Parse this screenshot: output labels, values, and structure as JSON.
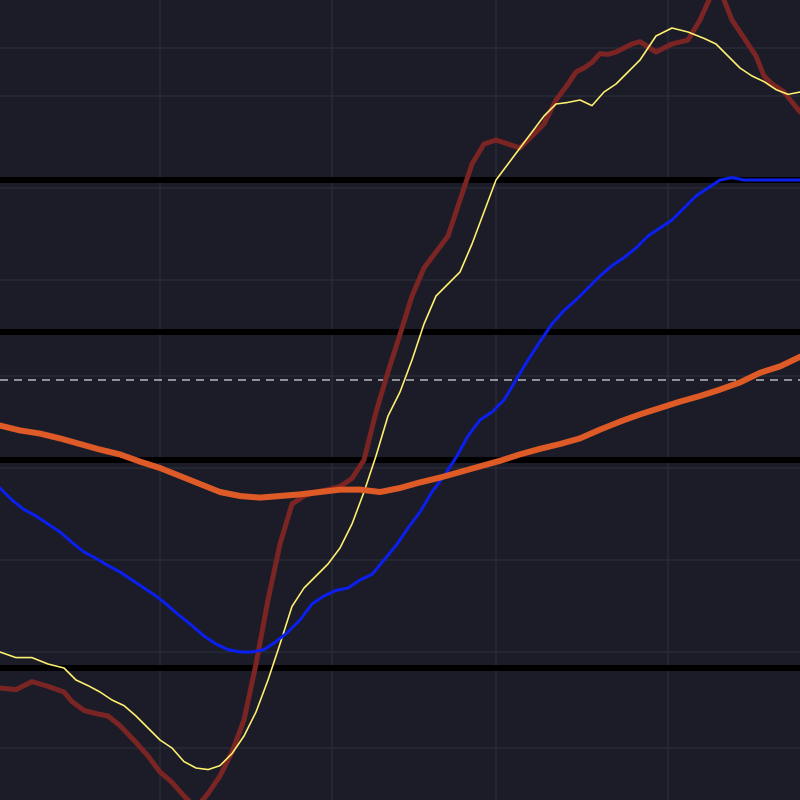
{
  "colors": {
    "background": "#1b1c27",
    "grid": "#2c2f3d",
    "hline": "#000000",
    "dashed": "#b8b8bd"
  },
  "chart_data": {
    "type": "line",
    "title": "",
    "xlabel": "",
    "ylabel": "",
    "grid": true,
    "legend": "none",
    "xlim": [
      0,
      100
    ],
    "ylim": [
      0,
      100
    ],
    "x_grid": [
      20,
      41.5,
      62,
      83.5
    ],
    "y_grid": [
      6.5,
      18.5,
      30,
      41.5,
      53,
      65,
      76.5,
      88,
      94
    ],
    "horizontal_levels": [
      {
        "value": 16.5,
        "style": "solid",
        "color": "#000000"
      },
      {
        "value": 42.5,
        "style": "solid",
        "color": "#000000"
      },
      {
        "value": 58.5,
        "style": "solid",
        "color": "#000000"
      },
      {
        "value": 77.5,
        "style": "solid",
        "color": "#000000"
      },
      {
        "value": 52.5,
        "style": "dashed",
        "color": "#b8b8bd"
      }
    ],
    "series": [
      {
        "color": "#7a2424",
        "width": 5,
        "x": [
          0,
          2,
          4,
          6,
          8,
          9,
          10.5,
          12,
          13.5,
          15,
          17,
          18.5,
          20,
          21.5,
          23,
          24.5,
          26,
          27.5,
          29,
          30.5,
          32,
          33.5,
          35,
          36.5,
          38,
          39.5,
          41,
          42.5,
          44,
          45.5,
          47,
          48.5,
          50,
          51.5,
          53,
          54.5,
          56,
          57.5,
          59,
          60.5,
          62,
          63.5,
          65,
          66.5,
          68,
          69.5,
          71,
          72,
          73,
          74,
          75,
          76,
          77,
          78,
          79,
          80,
          82,
          84,
          86,
          87.5,
          88.5,
          89.5,
          90.5,
          91.5,
          92.5,
          93.5,
          94.5,
          95.5,
          96.5,
          98,
          100
        ],
        "y": [
          14,
          13.8,
          14.8,
          14.2,
          13.5,
          12.3,
          11.2,
          10.8,
          10.5,
          9.3,
          7.2,
          5.5,
          3.5,
          2.2,
          0.5,
          -1,
          0.8,
          3,
          6,
          10,
          17,
          25,
          32,
          37,
          38,
          38.5,
          38.8,
          39.2,
          40.2,
          42.5,
          48.5,
          53.5,
          58.2,
          63,
          66.5,
          68.5,
          70.5,
          75,
          79.5,
          82,
          82.5,
          82,
          81.5,
          83,
          84.5,
          87.5,
          89.5,
          91,
          91.5,
          92.2,
          93.3,
          93.2,
          93.5,
          94,
          94.5,
          94.8,
          93.5,
          94.5,
          95,
          97.5,
          99.7,
          102,
          100,
          97.5,
          96,
          94.5,
          93,
          90.5,
          89.5,
          88.5,
          86
        ]
      },
      {
        "color": "#fff070",
        "width": 1.6,
        "x": [
          0,
          2,
          4,
          6,
          8,
          9.5,
          11,
          12.5,
          14,
          15.5,
          17,
          18.5,
          20,
          21.5,
          23,
          24.5,
          26,
          27.5,
          29,
          30.5,
          32,
          33.5,
          35,
          36.5,
          38,
          39.5,
          41,
          42.5,
          44,
          45.5,
          47,
          48.5,
          50,
          51.5,
          53,
          54.5,
          56,
          57.5,
          59,
          60.5,
          62,
          63.5,
          65,
          66.5,
          68,
          69.5,
          71,
          72.5,
          74,
          75.5,
          77,
          78.5,
          80,
          82,
          84,
          86,
          88,
          89.5,
          91,
          92.5,
          94,
          95.5,
          97,
          98.5,
          100
        ],
        "y": [
          18.5,
          17.8,
          17.8,
          17,
          16.5,
          15,
          14.3,
          13.5,
          12.5,
          11.8,
          10.5,
          9,
          7.5,
          6.5,
          4.8,
          4,
          3.8,
          4.3,
          5.8,
          8,
          11,
          15,
          19.5,
          24.2,
          26.5,
          28,
          29.5,
          31.5,
          34.5,
          38.5,
          43,
          48,
          51,
          55,
          59.5,
          63,
          64.5,
          66,
          69.5,
          73.5,
          77.5,
          79.5,
          81.5,
          83.5,
          85.5,
          87,
          87.2,
          87.5,
          86.8,
          88.5,
          89.5,
          91,
          92.5,
          95.5,
          96.5,
          96,
          95.2,
          94.5,
          93,
          91.5,
          90.5,
          89.8,
          88.8,
          88.2,
          88.5
        ]
      },
      {
        "color": "#0a1ff0",
        "width": 3,
        "x": [
          0,
          1.5,
          3,
          4.5,
          6,
          7.5,
          9,
          10.5,
          12,
          13.5,
          15,
          16.5,
          18,
          19.5,
          21,
          22.5,
          24,
          25.5,
          27,
          28.5,
          30,
          31.5,
          33,
          34.5,
          36,
          37.5,
          39,
          40.5,
          42,
          43.5,
          45,
          46.5,
          48,
          49.5,
          51,
          52.5,
          54,
          55.5,
          57,
          58.5,
          60,
          61.5,
          63,
          64.5,
          66,
          67.5,
          69,
          70.5,
          72,
          73.5,
          75,
          76.5,
          78,
          79.5,
          81,
          82.5,
          84,
          85.5,
          87,
          88.5,
          90,
          91.5,
          93,
          95,
          97,
          100
        ],
        "y": [
          39,
          37.5,
          36.3,
          35.5,
          34.5,
          33.5,
          32.2,
          31,
          30.2,
          29.3,
          28.5,
          27.5,
          26.5,
          25.5,
          24.3,
          23,
          21.8,
          20.5,
          19.5,
          18.8,
          18.5,
          18.5,
          18.8,
          19.8,
          21,
          22.5,
          24.5,
          25.5,
          26.2,
          26.5,
          27.5,
          28.2,
          30,
          31.8,
          34,
          36,
          38.5,
          40.5,
          42.8,
          45.5,
          47.5,
          48.5,
          50,
          52.5,
          55,
          57.3,
          59.5,
          61.2,
          62.5,
          64,
          65.5,
          66.8,
          67.8,
          69,
          70.5,
          71.5,
          72.5,
          74,
          75.5,
          76.5,
          77.5,
          77.8,
          77.5,
          77.5,
          77.5,
          77.5
        ]
      },
      {
        "color": "#de5a26",
        "width": 6,
        "x": [
          0,
          2.5,
          5,
          7.5,
          10,
          12.5,
          15,
          17.5,
          20,
          22.5,
          25,
          27.5,
          30,
          32.5,
          35,
          37.5,
          40,
          42.5,
          45,
          47.5,
          50,
          52.5,
          55,
          57.5,
          60,
          62.5,
          65,
          67.5,
          70,
          72.5,
          75,
          77.5,
          80,
          82.5,
          85,
          87.5,
          90,
          92.5,
          95,
          97.5,
          100
        ],
        "y": [
          46.8,
          46.2,
          45.8,
          45.2,
          44.5,
          43.8,
          43.2,
          42.3,
          41.5,
          40.5,
          39.5,
          38.5,
          38,
          37.8,
          38,
          38.2,
          38.5,
          38.8,
          38.8,
          38.5,
          39,
          39.7,
          40.3,
          41,
          41.7,
          42.4,
          43.2,
          43.9,
          44.5,
          45.2,
          46.3,
          47.3,
          48.2,
          49,
          49.8,
          50.5,
          51.3,
          52.2,
          53.4,
          54.2,
          55.4
        ]
      }
    ]
  }
}
